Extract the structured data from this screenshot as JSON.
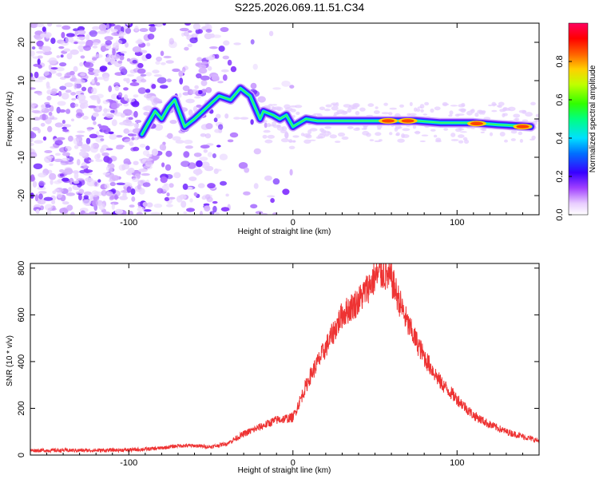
{
  "title": "S225.2026.069.11.51.C34",
  "chart_data": [
    {
      "type": "heatmap",
      "id": "spectrogram",
      "xlabel": "Height of straight line (km)",
      "ylabel": "Frequency (Hz)",
      "xlim": [
        -160,
        150
      ],
      "ylim": [
        -25,
        25
      ],
      "xticks": [
        -100,
        0,
        100
      ],
      "yticks": [
        -20,
        -10,
        0,
        10,
        20
      ],
      "ridge": [
        {
          "x": -92,
          "y": -4
        },
        {
          "x": -88,
          "y": -1
        },
        {
          "x": -84,
          "y": 2
        },
        {
          "x": -80,
          "y": 0
        },
        {
          "x": -76,
          "y": 3
        },
        {
          "x": -72,
          "y": 5
        },
        {
          "x": -66,
          "y": -2
        },
        {
          "x": -60,
          "y": 0
        },
        {
          "x": -55,
          "y": 2
        },
        {
          "x": -50,
          "y": 4
        },
        {
          "x": -45,
          "y": 6
        },
        {
          "x": -38,
          "y": 5
        },
        {
          "x": -32,
          "y": 8
        },
        {
          "x": -26,
          "y": 6
        },
        {
          "x": -20,
          "y": 0
        },
        {
          "x": -18,
          "y": 2
        },
        {
          "x": -12,
          "y": 1
        },
        {
          "x": -8,
          "y": 0
        },
        {
          "x": -4,
          "y": 1
        },
        {
          "x": 0,
          "y": -2
        },
        {
          "x": 4,
          "y": -1
        },
        {
          "x": 8,
          "y": 0
        },
        {
          "x": 15,
          "y": -0.5
        },
        {
          "x": 30,
          "y": -0.5
        },
        {
          "x": 50,
          "y": -0.5
        },
        {
          "x": 75,
          "y": -0.5
        },
        {
          "x": 90,
          "y": -1
        },
        {
          "x": 110,
          "y": -1
        },
        {
          "x": 125,
          "y": -1.5
        },
        {
          "x": 145,
          "y": -2
        }
      ],
      "hot_spots": [
        {
          "x": 58,
          "y": -0.5
        },
        {
          "x": 70,
          "y": -0.5
        },
        {
          "x": 112,
          "y": -1.2
        },
        {
          "x": 140,
          "y": -2
        }
      ]
    },
    {
      "type": "line",
      "id": "snr",
      "xlabel": "Height of straight line (km)",
      "ylabel": "SNR (10 * v/v)",
      "xlim": [
        -160,
        150
      ],
      "ylim": [
        0,
        820
      ],
      "xticks": [
        -100,
        0,
        100
      ],
      "yticks": [
        0,
        200,
        400,
        600,
        800
      ],
      "color": "#ee3333",
      "x": [
        -160,
        -140,
        -120,
        -100,
        -90,
        -80,
        -70,
        -60,
        -50,
        -40,
        -30,
        -20,
        -10,
        0,
        10,
        20,
        30,
        40,
        50,
        55,
        60,
        70,
        80,
        90,
        100,
        110,
        120,
        130,
        140,
        150
      ],
      "y": [
        20,
        20,
        20,
        22,
        25,
        30,
        40,
        40,
        35,
        50,
        90,
        120,
        150,
        160,
        330,
        460,
        600,
        660,
        760,
        780,
        750,
        560,
        420,
        310,
        240,
        170,
        130,
        100,
        80,
        60
      ]
    }
  ],
  "colorbar": {
    "label": "Normalized spectral amplitude",
    "ticks": [
      "0.0",
      "0.2",
      "0.4",
      "0.6",
      "0.8"
    ]
  }
}
